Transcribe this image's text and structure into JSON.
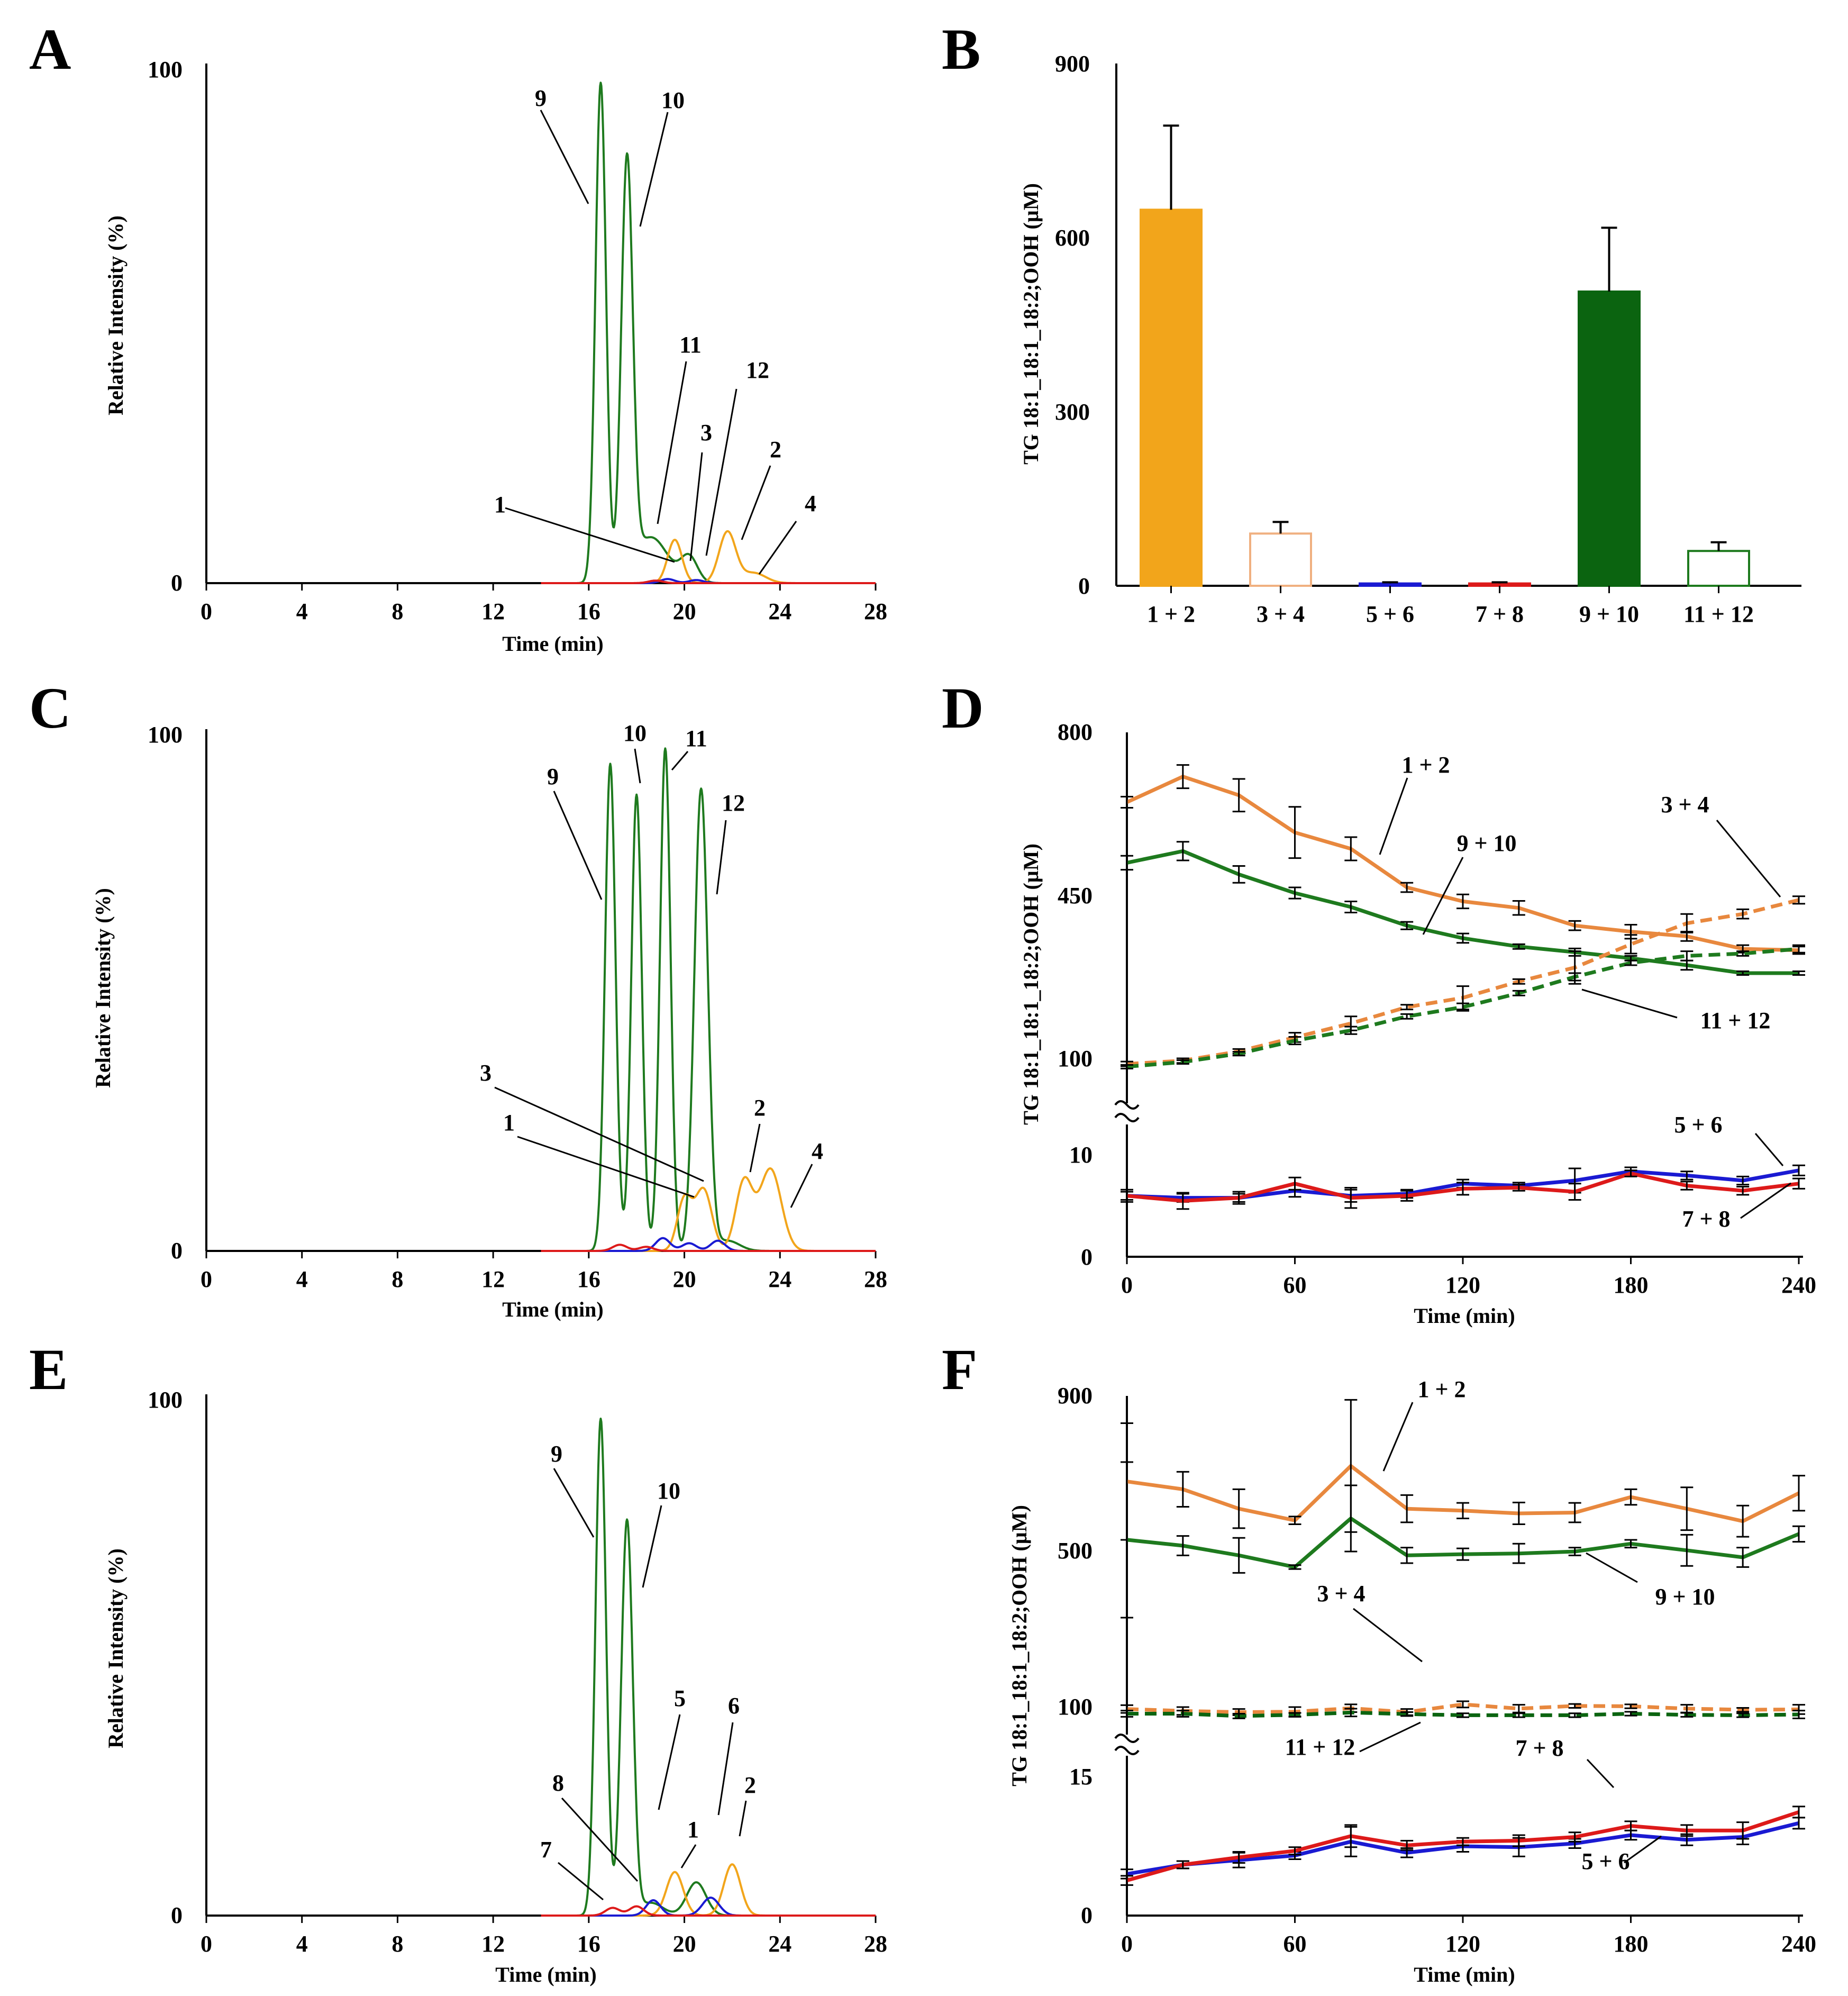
{
  "colors": {
    "orange": "#F2A51B",
    "orange_line": "#E8883E",
    "green": "#1E7A1E",
    "dark_green": "#0B6410",
    "blue": "#1A1AD2",
    "red": "#DD1A1A",
    "light_orange": "#F0B080",
    "black": "#000000"
  },
  "panels": {
    "A": "A",
    "B": "B",
    "C": "C",
    "D": "D",
    "E": "E",
    "F": "F"
  },
  "chart_data": [
    {
      "id": "A",
      "type": "line",
      "xlabel": "Time (min)",
      "ylabel": "Relative Intensity (%)",
      "xlim": [
        0,
        28
      ],
      "ylim": [
        0,
        100
      ],
      "x_ticks": [
        "0",
        "4",
        "8",
        "12",
        "16",
        "20",
        "24",
        "28"
      ],
      "y_ticks": [
        "0",
        "100"
      ],
      "series": [
        {
          "name": "green",
          "color": "green",
          "peaks": [
            {
              "t": 16.5,
              "h": 98,
              "w": 0.22
            },
            {
              "t": 17.6,
              "h": 81,
              "w": 0.24
            },
            {
              "t": 18.6,
              "h": 9,
              "w": 0.7
            },
            {
              "t": 20.2,
              "h": 5,
              "w": 0.35
            }
          ]
        },
        {
          "name": "orange",
          "color": "orange",
          "peaks": [
            {
              "t": 19.6,
              "h": 8.5,
              "w": 0.3
            },
            {
              "t": 21.8,
              "h": 10,
              "w": 0.35
            },
            {
              "t": 22.9,
              "h": 2,
              "w": 0.5
            }
          ]
        },
        {
          "name": "blue",
          "color": "blue",
          "peaks": [
            {
              "t": 19.3,
              "h": 0.8,
              "w": 0.3
            },
            {
              "t": 20.5,
              "h": 0.6,
              "w": 0.3
            }
          ]
        },
        {
          "name": "red",
          "color": "red",
          "peaks": [
            {
              "t": 18.8,
              "h": 0.5,
              "w": 0.3
            }
          ]
        }
      ],
      "annotations": [
        "9",
        "10",
        "11",
        "12",
        "3",
        "2",
        "1",
        "4"
      ]
    },
    {
      "id": "B",
      "type": "bar",
      "ylabel": "TG 18:1_18:1_18:2;OOH (µM)",
      "ylim": [
        0,
        900
      ],
      "y_ticks": [
        "0",
        "300",
        "600",
        "900"
      ],
      "categories": [
        "1 + 2",
        "3 + 4",
        "5 + 6",
        "7 + 8",
        "9 + 10",
        "11 + 12"
      ],
      "values": [
        648,
        90,
        4,
        4,
        507,
        60
      ],
      "errors": [
        145,
        20,
        2,
        2,
        110,
        15
      ],
      "bar_colors": [
        "orange",
        "open-orange",
        "blue",
        "red",
        "dark_green",
        "open-green"
      ]
    },
    {
      "id": "C",
      "type": "line",
      "xlabel": "Time (min)",
      "ylabel": "Relative Intensity (%)",
      "xlim": [
        0,
        28
      ],
      "ylim": [
        0,
        100
      ],
      "x_ticks": [
        "0",
        "4",
        "8",
        "12",
        "16",
        "20",
        "24",
        "28"
      ],
      "y_ticks": [
        "0",
        "100"
      ],
      "series": [
        {
          "name": "green",
          "color": "green",
          "peaks": [
            {
              "t": 16.9,
              "h": 95,
              "w": 0.22
            },
            {
              "t": 18.0,
              "h": 89,
              "w": 0.22
            },
            {
              "t": 19.2,
              "h": 98,
              "w": 0.22
            },
            {
              "t": 20.7,
              "h": 90,
              "w": 0.28
            },
            {
              "t": 21.8,
              "h": 2,
              "w": 0.5
            }
          ]
        },
        {
          "name": "orange",
          "color": "orange",
          "peaks": [
            {
              "t": 20.0,
              "h": 10,
              "w": 0.3
            },
            {
              "t": 20.8,
              "h": 12,
              "w": 0.35
            },
            {
              "t": 22.5,
              "h": 13.5,
              "w": 0.35
            },
            {
              "t": 23.6,
              "h": 16,
              "w": 0.45
            }
          ]
        },
        {
          "name": "blue",
          "color": "blue",
          "peaks": [
            {
              "t": 19.1,
              "h": 2.5,
              "w": 0.3
            },
            {
              "t": 20.2,
              "h": 1.5,
              "w": 0.3
            },
            {
              "t": 21.4,
              "h": 2,
              "w": 0.3
            }
          ]
        },
        {
          "name": "red",
          "color": "red",
          "peaks": [
            {
              "t": 17.3,
              "h": 1.2,
              "w": 0.3
            },
            {
              "t": 18.4,
              "h": 0.8,
              "w": 0.3
            }
          ]
        }
      ],
      "annotations": [
        "9",
        "10",
        "11",
        "12",
        "3",
        "1",
        "2",
        "4"
      ]
    },
    {
      "id": "D",
      "type": "line",
      "xlabel": "Time (min)",
      "ylabel": "TG 18:1_18:1_18:2;OOH (µM)",
      "x": [
        0,
        20,
        40,
        60,
        80,
        100,
        120,
        140,
        160,
        180,
        200,
        220,
        240
      ],
      "x_ticks": [
        "0",
        "60",
        "120",
        "180",
        "240"
      ],
      "y_ticks_upper": [
        "100",
        "450",
        "800"
      ],
      "y_ticks_lower": [
        "0",
        "10"
      ],
      "axis_break": true,
      "series": [
        {
          "name": "1 + 2",
          "style": "solid",
          "color": "orange_line",
          "values": [
            650,
            705,
            665,
            585,
            550,
            467,
            437,
            423,
            385,
            372,
            362,
            335,
            332
          ],
          "errors": [
            12,
            25,
            35,
            55,
            25,
            10,
            15,
            15,
            10,
            15,
            10,
            8,
            8
          ]
        },
        {
          "name": "9 + 10",
          "style": "solid",
          "color": "green",
          "values": [
            520,
            545,
            495,
            455,
            425,
            385,
            358,
            340,
            328,
            315,
            300,
            283,
            283
          ],
          "errors": [
            15,
            20,
            18,
            12,
            12,
            8,
            10,
            5,
            8,
            5,
            10,
            4,
            4
          ]
        },
        {
          "name": "3 + 4",
          "style": "dashed",
          "color": "orange_line",
          "values": [
            88,
            95,
            115,
            145,
            175,
            210,
            230,
            265,
            295,
            345,
            390,
            410,
            440
          ],
          "errors": [
            5,
            5,
            5,
            10,
            15,
            5,
            25,
            5,
            35,
            20,
            20,
            10,
            8
          ]
        },
        {
          "name": "11 + 12",
          "style": "dashed",
          "color": "green",
          "values": [
            82,
            92,
            110,
            138,
            160,
            190,
            210,
            240,
            275,
            305,
            320,
            325,
            335
          ],
          "errors": [
            4,
            4,
            4,
            8,
            8,
            5,
            8,
            5,
            8,
            5,
            10,
            5,
            8
          ]
        },
        {
          "name": "5 + 6",
          "style": "solid",
          "color": "blue",
          "values": [
            6,
            5.8,
            5.8,
            6.5,
            6.0,
            6.2,
            7.2,
            7.0,
            7.5,
            8.4,
            8.0,
            7.5,
            8.5
          ],
          "errors": [
            0.4,
            0.4,
            0.4,
            0.6,
            0.6,
            0.4,
            0.4,
            0.3,
            1.2,
            0.4,
            0.4,
            0.4,
            0.5
          ]
        },
        {
          "name": "7 + 8",
          "style": "solid",
          "color": "red",
          "values": [
            6.0,
            5.5,
            5.8,
            7.2,
            5.8,
            6.0,
            6.7,
            6.8,
            6.4,
            8.2,
            7.0,
            6.5,
            7.2
          ],
          "errors": [
            0.6,
            0.8,
            0.6,
            0.6,
            1.0,
            0.5,
            0.6,
            0.3,
            0.8,
            0.3,
            0.4,
            0.4,
            0.5
          ]
        }
      ],
      "labels": [
        "1 + 2",
        "9 + 10",
        "3 + 4",
        "11 + 12",
        "5 + 6",
        "7 + 8"
      ]
    },
    {
      "id": "E",
      "type": "line",
      "xlabel": "Time (min)",
      "ylabel": "Relative Intensity (%)",
      "xlim": [
        0,
        28
      ],
      "ylim": [
        0,
        100
      ],
      "x_ticks": [
        "0",
        "4",
        "8",
        "12",
        "16",
        "20",
        "24",
        "28"
      ],
      "y_ticks": [
        "0",
        "100"
      ],
      "series": [
        {
          "name": "green",
          "color": "green",
          "peaks": [
            {
              "t": 16.5,
              "h": 97,
              "w": 0.22
            },
            {
              "t": 17.6,
              "h": 77,
              "w": 0.24
            },
            {
              "t": 18.6,
              "h": 2.5,
              "w": 0.5
            },
            {
              "t": 20.5,
              "h": 6.5,
              "w": 0.4
            }
          ]
        },
        {
          "name": "orange",
          "color": "orange",
          "peaks": [
            {
              "t": 19.6,
              "h": 8.5,
              "w": 0.35
            },
            {
              "t": 22.0,
              "h": 10,
              "w": 0.35
            }
          ]
        },
        {
          "name": "blue",
          "color": "blue",
          "peaks": [
            {
              "t": 18.7,
              "h": 3,
              "w": 0.3
            },
            {
              "t": 21.1,
              "h": 3.5,
              "w": 0.35
            }
          ]
        },
        {
          "name": "red",
          "color": "red",
          "peaks": [
            {
              "t": 17.0,
              "h": 1.5,
              "w": 0.3
            },
            {
              "t": 18.0,
              "h": 1.8,
              "w": 0.3
            }
          ]
        }
      ],
      "annotations": [
        "9",
        "10",
        "5",
        "6",
        "8",
        "1",
        "2",
        "7"
      ]
    },
    {
      "id": "F",
      "type": "line",
      "xlabel": "Time (min)",
      "ylabel": "TG 18:1_18:1_18:2;OOH (µM)",
      "x": [
        0,
        20,
        40,
        60,
        80,
        100,
        120,
        140,
        160,
        180,
        200,
        220,
        240
      ],
      "x_ticks": [
        "0",
        "60",
        "120",
        "180",
        "240"
      ],
      "y_ticks_upper": [
        "100",
        "500",
        "900"
      ],
      "y_ticks_lower": [
        "0",
        "15"
      ],
      "axis_break": true,
      "series": [
        {
          "name": "1 + 2",
          "style": "solid",
          "color": "orange_line",
          "values": [
            680,
            660,
            610,
            580,
            720,
            610,
            605,
            598,
            600,
            640,
            610,
            578,
            650
          ],
          "errors": [
            150,
            45,
            50,
            10,
            170,
            35,
            20,
            28,
            25,
            20,
            55,
            40,
            45
          ]
        },
        {
          "name": "9 + 10",
          "style": "solid",
          "color": "green",
          "values": [
            530,
            515,
            490,
            460,
            585,
            490,
            493,
            495,
            500,
            520,
            503,
            485,
            545
          ],
          "errors": [
            200,
            25,
            45,
            5,
            85,
            20,
            15,
            25,
            10,
            10,
            40,
            25,
            20
          ]
        },
        {
          "name": "3 + 4",
          "style": "dashed",
          "color": "orange_line",
          "values": [
            95,
            90,
            87,
            88,
            97,
            87,
            107,
            96,
            103,
            102,
            96,
            93,
            94
          ],
          "errors": [
            10,
            10,
            8,
            12,
            10,
            8,
            8,
            10,
            5,
            5,
            10,
            5,
            12
          ]
        },
        {
          "name": "11 + 12",
          "style": "dashed",
          "color": "dark_green",
          "values": [
            83,
            83,
            77,
            80,
            86,
            82,
            79,
            79,
            79,
            83,
            80,
            79,
            81
          ],
          "errors": [
            8,
            8,
            6,
            5,
            10,
            5,
            5,
            5,
            5,
            5,
            5,
            5,
            10
          ]
        },
        {
          "name": "5 + 6",
          "style": "solid",
          "color": "blue",
          "values": [
            4.5,
            5.5,
            6.0,
            6.5,
            8.0,
            6.8,
            7.5,
            7.4,
            7.8,
            8.7,
            8.2,
            8.5,
            10.0
          ],
          "errors": [
            0.5,
            0.4,
            0.8,
            0.4,
            1.6,
            0.5,
            0.6,
            1.0,
            0.5,
            0.5,
            0.6,
            0.8,
            0.6
          ]
        },
        {
          "name": "7 + 8",
          "style": "solid",
          "color": "red",
          "values": [
            3.8,
            5.5,
            6.3,
            7.0,
            8.6,
            7.6,
            8.0,
            8.1,
            8.5,
            9.7,
            9.2,
            9.2,
            11.2
          ],
          "errors": [
            0.5,
            0.4,
            0.6,
            0.4,
            1.2,
            0.5,
            0.4,
            0.6,
            0.5,
            0.5,
            0.6,
            0.9,
            0.6
          ]
        }
      ],
      "labels": [
        "1 + 2",
        "9 + 10",
        "3 + 4",
        "11 + 12",
        "7 + 8",
        "5 + 6"
      ]
    }
  ]
}
